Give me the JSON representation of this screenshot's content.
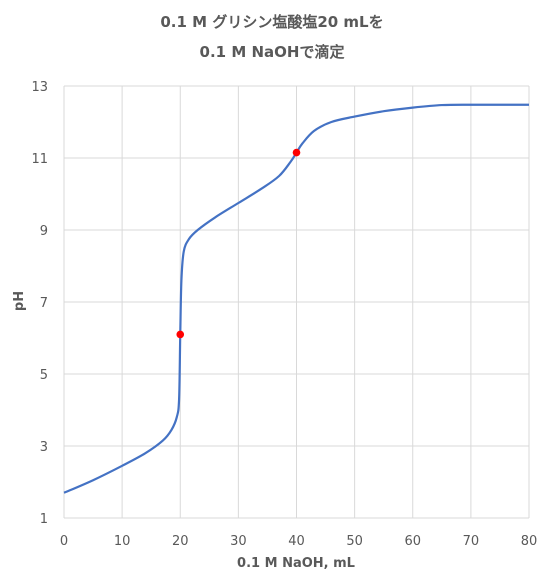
{
  "chart_data": {
    "type": "line",
    "title": [
      "0.1 M グリシン塩酸塩20 mLを",
      "0.1 M NaOHで滴定"
    ],
    "xlabel": "0.1 M NaOH, mL",
    "ylabel": "pH",
    "xlim": [
      0,
      80
    ],
    "ylim": [
      1,
      13
    ],
    "xticks": [
      "0",
      "10",
      "20",
      "30",
      "40",
      "50",
      "60",
      "70",
      "80"
    ],
    "yticks": [
      "1",
      "3",
      "5",
      "7",
      "9",
      "11",
      "13"
    ],
    "grid": true,
    "legend": "none",
    "series": [
      {
        "color": "#4472c4",
        "x": [
          0,
          5,
          10,
          14,
          17,
          18.5,
          19.4,
          19.8,
          20,
          20.2,
          20.6,
          21.5,
          23,
          26,
          30,
          34,
          37,
          39,
          40,
          41,
          43,
          46,
          50,
          55,
          60,
          65,
          70,
          75,
          80
        ],
        "y": [
          1.7,
          2.05,
          2.45,
          2.8,
          3.15,
          3.45,
          3.8,
          4.3,
          6.1,
          7.6,
          8.4,
          8.75,
          9.0,
          9.35,
          9.75,
          10.15,
          10.5,
          10.9,
          11.15,
          11.4,
          11.75,
          12.0,
          12.15,
          12.3,
          12.4,
          12.47,
          12.48,
          12.48,
          12.48
        ]
      }
    ],
    "points": [
      {
        "x": 20,
        "y": 6.1,
        "color": "#ff0000"
      },
      {
        "x": 40,
        "y": 11.15,
        "color": "#ff0000"
      }
    ]
  }
}
